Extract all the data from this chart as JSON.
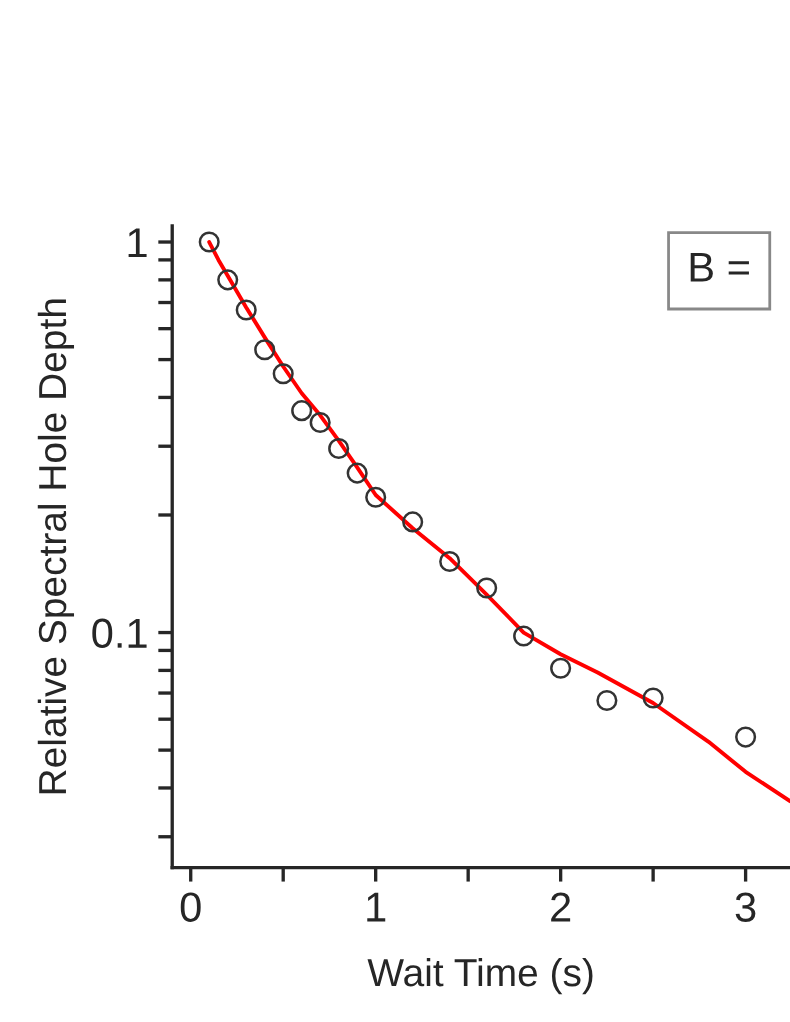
{
  "chart_data": {
    "type": "scatter",
    "xlabel": "Wait Time (s)",
    "ylabel": "Relative Spectral Hole Depth",
    "annotations": [
      "B ="
    ],
    "log": "y",
    "grid": false,
    "xlim": [
      -0.1,
      3.24
    ],
    "ylim": [
      0.025,
      1.1
    ],
    "xticks": [
      0,
      {
        "value": 0.5,
        "label": null
      },
      1,
      {
        "value": 1.5,
        "label": null
      },
      2,
      {
        "value": 2.5,
        "label": null
      },
      3
    ],
    "yticks": [
      {
        "value": 0.03,
        "label": null
      },
      {
        "value": 0.04,
        "label": null
      },
      {
        "value": 0.05,
        "label": null
      },
      {
        "value": 0.06,
        "label": null
      },
      {
        "value": 0.07,
        "label": null
      },
      {
        "value": 0.08,
        "label": null
      },
      {
        "value": 0.09,
        "label": null
      },
      0.1,
      {
        "value": 0.2,
        "label": null
      },
      {
        "value": 0.3,
        "label": null
      },
      {
        "value": 0.4,
        "label": null
      },
      {
        "value": 0.5,
        "label": null
      },
      {
        "value": 0.6,
        "label": null
      },
      {
        "value": 0.7,
        "label": null
      },
      {
        "value": 0.8,
        "label": null
      },
      {
        "value": 0.9,
        "label": null
      },
      1
    ],
    "series": [
      {
        "marker": "circle",
        "color": "#333333",
        "x": [
          0.1,
          0.2,
          0.3,
          0.4,
          0.5,
          0.6,
          0.7,
          0.8,
          0.9,
          1.0,
          1.2,
          1.4,
          1.6,
          1.8,
          2.0,
          2.25,
          2.5,
          3.0
        ],
        "values": [
          1.0,
          0.8,
          0.67,
          0.53,
          0.46,
          0.37,
          0.345,
          0.296,
          0.256,
          0.222,
          0.192,
          0.152,
          0.13,
          0.098,
          0.081,
          0.067,
          0.068,
          0.054
        ]
      },
      {
        "type": "line",
        "marker": "none",
        "color": "#ff0000",
        "x": [
          0.1,
          0.15,
          0.2,
          0.3,
          0.4,
          0.5,
          0.6,
          0.7,
          0.8,
          0.9,
          1.0,
          1.2,
          1.4,
          1.6,
          1.8,
          2.0,
          2.2,
          2.5,
          2.8,
          3.0,
          3.24
        ],
        "values": [
          1.0,
          0.9,
          0.82,
          0.68,
          0.57,
          0.48,
          0.41,
          0.36,
          0.31,
          0.265,
          0.225,
          0.185,
          0.155,
          0.125,
          0.1,
          0.088,
          0.079,
          0.066,
          0.0525,
          0.044,
          0.037
        ]
      }
    ]
  }
}
